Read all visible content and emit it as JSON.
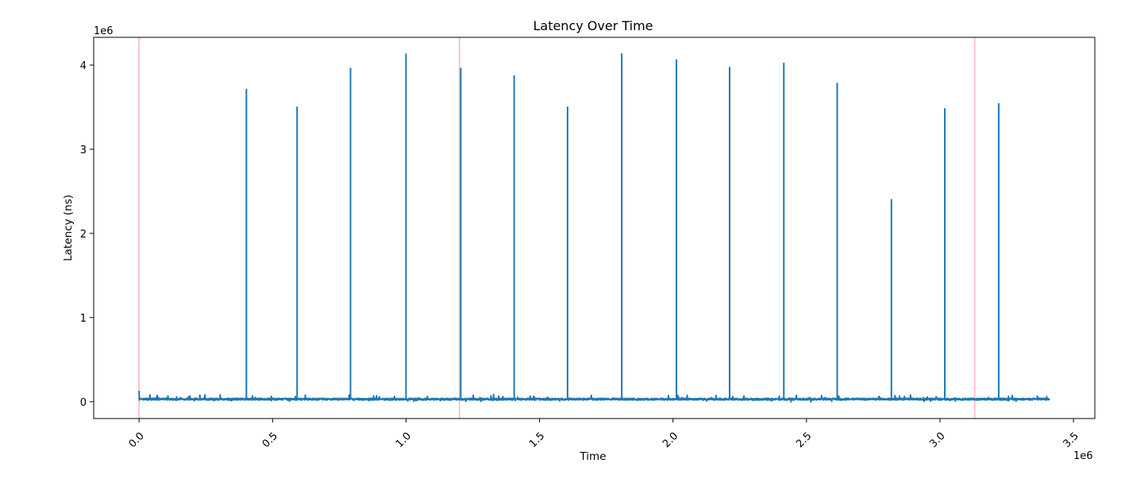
{
  "chart_data": {
    "type": "line",
    "title": "Latency Over Time",
    "xlabel": "Time",
    "ylabel": "Latency (ns)",
    "x_offset_label": "1e6",
    "y_offset_label": "1e6",
    "xlim": [
      -170000,
      3580000
    ],
    "ylim": [
      -200000,
      4330000
    ],
    "xticks": [
      0,
      500000,
      1000000,
      1500000,
      2000000,
      2500000,
      3000000,
      3500000
    ],
    "xtick_labels": [
      "0.0",
      "0.5",
      "1.0",
      "1.5",
      "2.0",
      "2.5",
      "3.0",
      "3.5"
    ],
    "yticks": [
      0,
      1000000,
      2000000,
      3000000,
      4000000
    ],
    "ytick_labels": [
      "0",
      "1",
      "2",
      "3",
      "4"
    ],
    "series_color": "#1f77b4",
    "vline_color": "#ffb6c1",
    "vlines_x": [
      0,
      1200000,
      3130000
    ],
    "baseline": 30000,
    "x_range": [
      0,
      3410000
    ],
    "spikes": [
      {
        "x": 402000,
        "y": 3710000
      },
      {
        "x": 592000,
        "y": 3500000
      },
      {
        "x": 792000,
        "y": 3960000
      },
      {
        "x": 1000000,
        "y": 4130000
      },
      {
        "x": 1205000,
        "y": 3960000
      },
      {
        "x": 1405000,
        "y": 3870000
      },
      {
        "x": 1605000,
        "y": 3500000
      },
      {
        "x": 1808000,
        "y": 4130000
      },
      {
        "x": 2013000,
        "y": 4060000
      },
      {
        "x": 2212000,
        "y": 3970000
      },
      {
        "x": 2415000,
        "y": 4020000
      },
      {
        "x": 2615000,
        "y": 3780000
      },
      {
        "x": 2818000,
        "y": 2400000
      },
      {
        "x": 3018000,
        "y": 3480000
      },
      {
        "x": 3220000,
        "y": 3540000
      }
    ],
    "grid": false
  }
}
